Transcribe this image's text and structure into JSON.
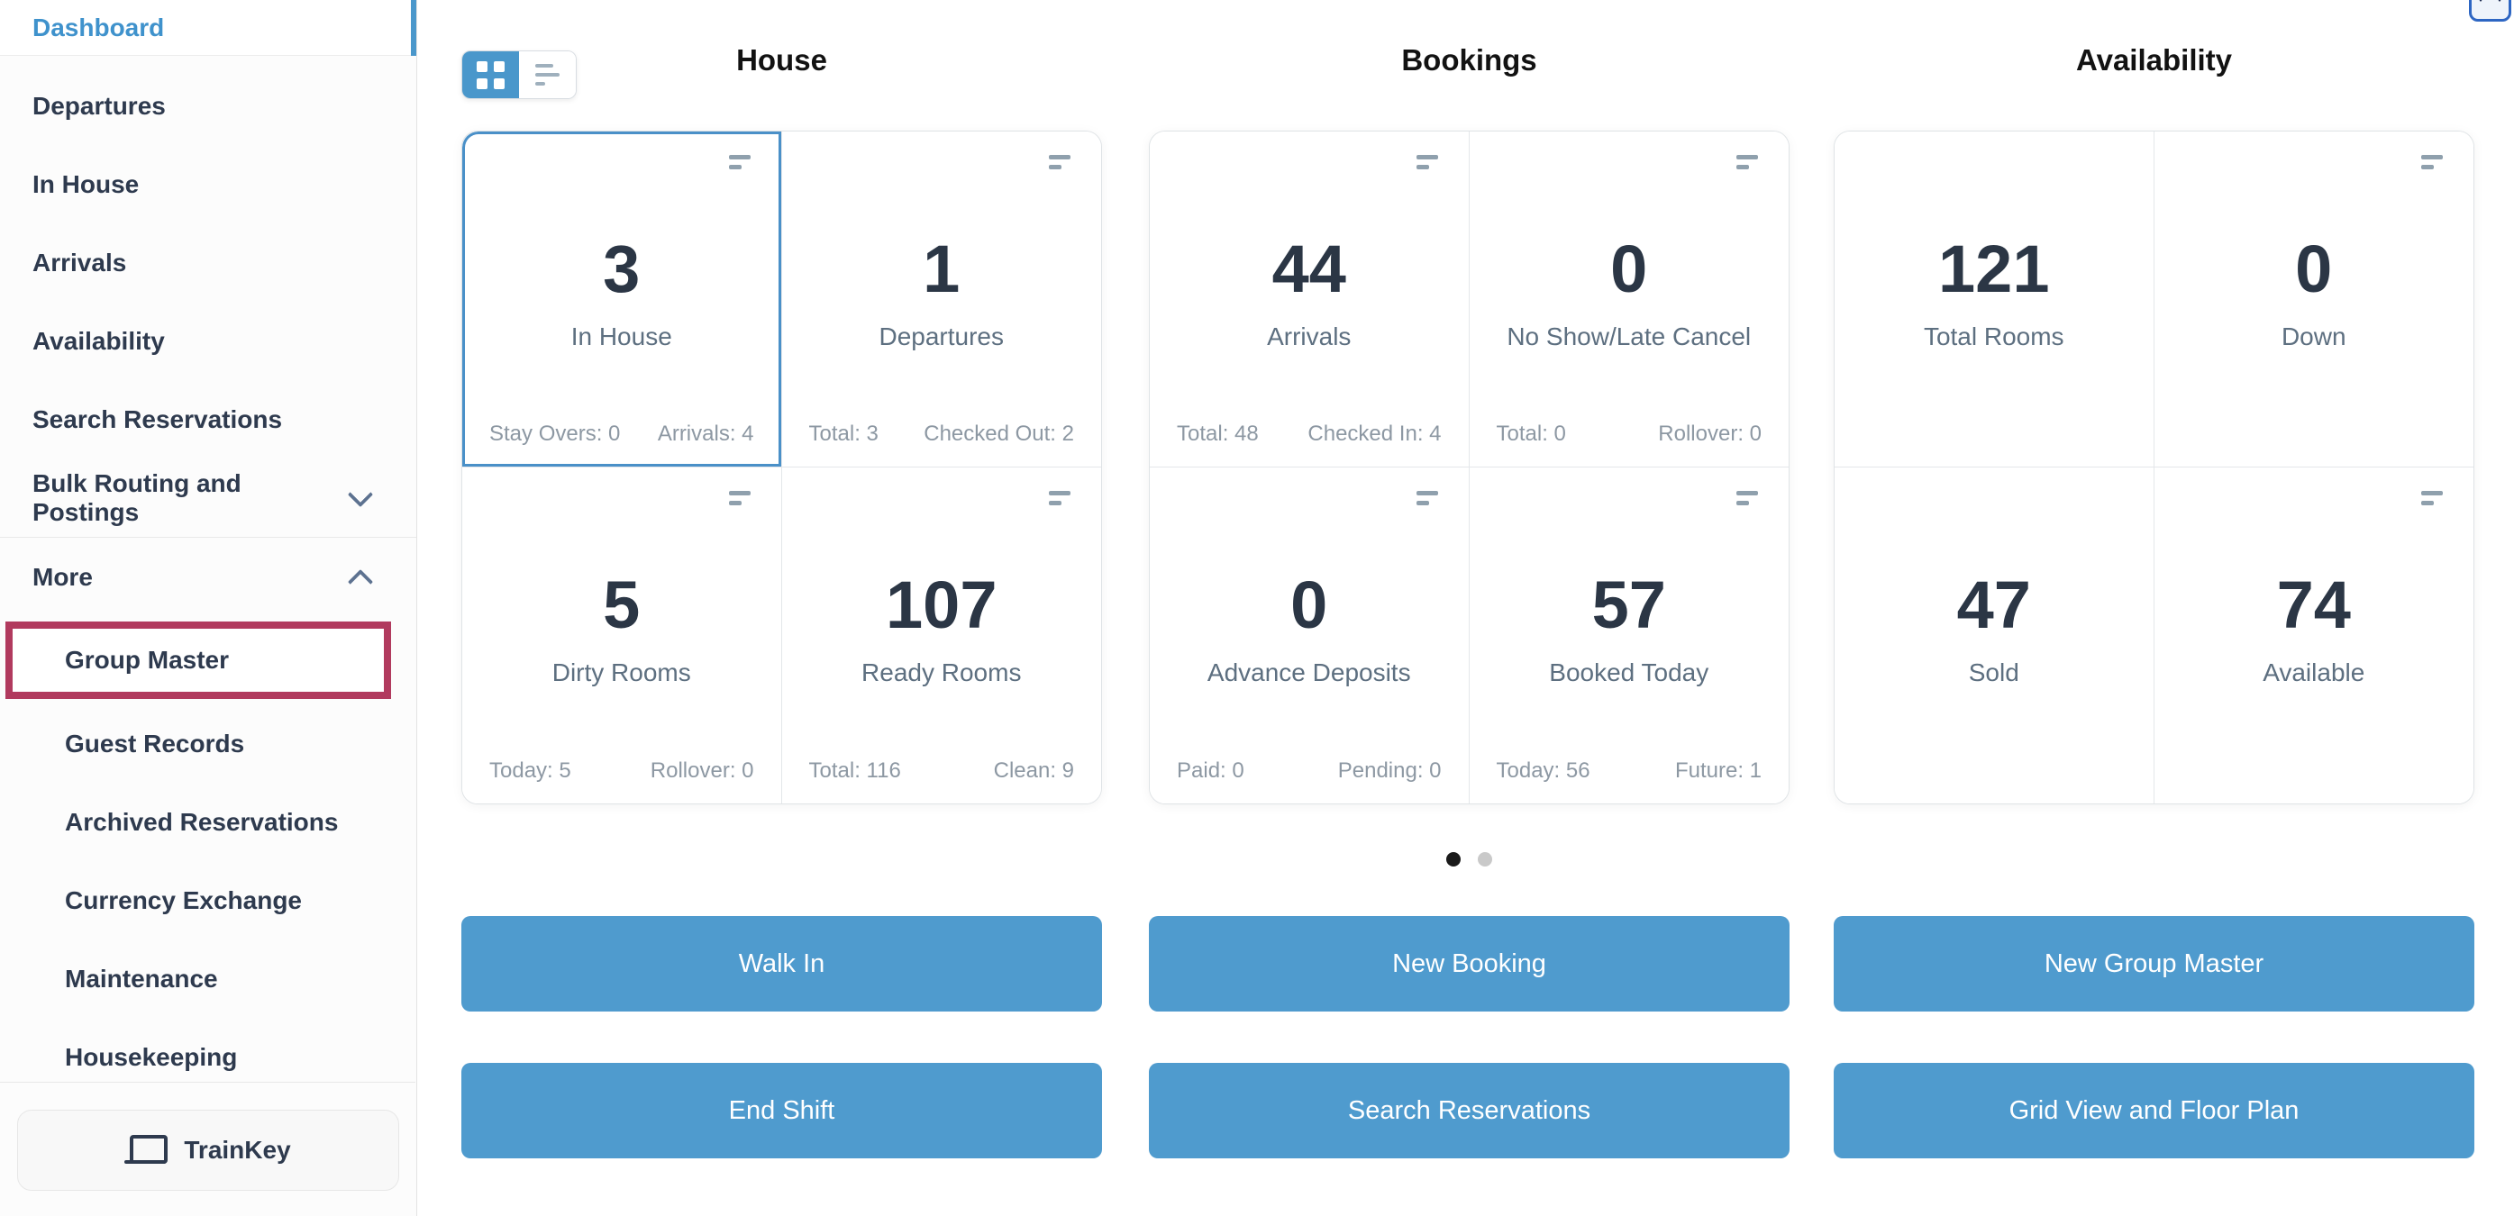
{
  "sidebar": {
    "items": [
      {
        "label": "Dashboard",
        "active": true
      },
      {
        "label": "Departures"
      },
      {
        "label": "In House"
      },
      {
        "label": "Arrivals"
      },
      {
        "label": "Availability"
      },
      {
        "label": "Search Reservations"
      },
      {
        "label": "Bulk Routing and Postings",
        "chevron": "down"
      },
      {
        "label": "More",
        "chevron": "up"
      },
      {
        "label": "Group Master",
        "sub": true,
        "highlighted": true
      },
      {
        "label": "Guest Records",
        "sub": true
      },
      {
        "label": "Archived Reservations",
        "sub": true
      },
      {
        "label": "Currency Exchange",
        "sub": true
      },
      {
        "label": "Maintenance",
        "sub": true
      },
      {
        "label": "Housekeeping",
        "sub": true
      }
    ],
    "trainkey_label": "TrainKey"
  },
  "view_toggle": {
    "selected": "grid",
    "options": [
      "grid",
      "list"
    ]
  },
  "sections": [
    {
      "title": "House",
      "cards": [
        {
          "value": "3",
          "label": "In House",
          "footer_left": "Stay Overs: 0",
          "footer_right": "Arrivals: 4",
          "selected": true
        },
        {
          "value": "1",
          "label": "Departures",
          "footer_left": "Total: 3",
          "footer_right": "Checked Out: 2"
        },
        {
          "value": "5",
          "label": "Dirty Rooms",
          "footer_left": "Today: 5",
          "footer_right": "Rollover: 0"
        },
        {
          "value": "107",
          "label": "Ready Rooms",
          "footer_left": "Total: 116",
          "footer_right": "Clean: 9"
        }
      ]
    },
    {
      "title": "Bookings",
      "cards": [
        {
          "value": "44",
          "label": "Arrivals",
          "footer_left": "Total: 48",
          "footer_right": "Checked In: 4"
        },
        {
          "value": "0",
          "label": "No Show/Late Cancel",
          "footer_left": "Total: 0",
          "footer_right": "Rollover: 0"
        },
        {
          "value": "0",
          "label": "Advance Deposits",
          "footer_left": "Paid: 0",
          "footer_right": "Pending: 0"
        },
        {
          "value": "57",
          "label": "Booked Today",
          "footer_left": "Today: 56",
          "footer_right": "Future: 1"
        }
      ]
    },
    {
      "title": "Availability",
      "cards": [
        {
          "value": "121",
          "label": "Total Rooms"
        },
        {
          "value": "0",
          "label": "Down"
        },
        {
          "value": "47",
          "label": "Sold"
        },
        {
          "value": "74",
          "label": "Available"
        }
      ]
    }
  ],
  "pagination": {
    "pages": 2,
    "active_index": 0
  },
  "actions": [
    "Walk In",
    "New Booking",
    "New Group Master",
    "End Shift",
    "Search Reservations",
    "Grid View and Floor Plan"
  ],
  "icons": [
    "grid-view-icon",
    "list-view-icon",
    "card-menu-icon",
    "chevron-down-icon",
    "chevron-up-icon",
    "laptop-icon"
  ],
  "colors": {
    "accent_blue": "#4f9bce",
    "toggle_active_blue": "#4a97cb",
    "selected_card_border": "#4a90c8",
    "active_link_blue": "#3f92cc",
    "highlight_maroon": "#b13a5e",
    "number_dark": "#2b3645",
    "label_gray": "#5d6f80",
    "footer_gray": "#8d98a3"
  }
}
